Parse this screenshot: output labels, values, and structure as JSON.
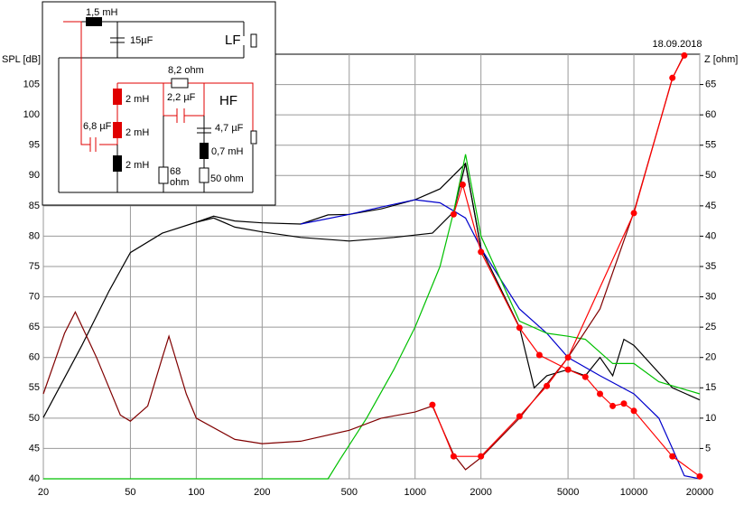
{
  "chart_data": {
    "type": "line",
    "title": "18.09.2018",
    "y_label": "SPL [dB]",
    "y2_label": "Z [ohm]",
    "xlim": [
      20,
      20000
    ],
    "xticks": [
      20,
      50,
      100,
      200,
      500,
      1000,
      2000,
      5000,
      10000,
      20000
    ],
    "log_x": true,
    "ylim": [
      40,
      110
    ],
    "yticks": [
      40,
      45,
      50,
      55,
      60,
      65,
      70,
      75,
      80,
      85,
      90,
      95,
      100,
      105
    ],
    "y2lim": [
      0,
      70
    ],
    "y2ticks": [
      5,
      10,
      15,
      20,
      25,
      30,
      35,
      40,
      45,
      50,
      55,
      60,
      65
    ],
    "grid": true,
    "series": [
      {
        "color": "#000000",
        "x": [
          20,
          30,
          40,
          50,
          70,
          100,
          120,
          150,
          200,
          300,
          400,
          500,
          700,
          1000,
          1300,
          1700,
          2000,
          3000,
          3500,
          4000,
          5000,
          6000,
          7000,
          8000,
          9000,
          10000,
          15000,
          20000
        ],
        "values": [
          50.1,
          62,
          71,
          77.3,
          80.5,
          82.3,
          83.3,
          82.5,
          82.2,
          82,
          83.5,
          83.6,
          84.5,
          86,
          87.8,
          92,
          78,
          65,
          55,
          57,
          58,
          57,
          60,
          57,
          63,
          62,
          55,
          53
        ]
      },
      {
        "color": "#000000",
        "x": [
          100,
          120,
          150,
          200,
          300,
          500,
          800,
          1200,
          1500,
          1700,
          2000
        ],
        "values": [
          82.3,
          83,
          81.5,
          80.7,
          79.8,
          79.2,
          79.8,
          80.5,
          84,
          92,
          78
        ]
      },
      {
        "color": "#0000cc",
        "x": [
          300,
          500,
          700,
          1000,
          1300,
          1700,
          2000,
          3000,
          4000,
          5000,
          7000,
          10000,
          13000,
          15000,
          17000,
          20000
        ],
        "values": [
          82,
          83.6,
          84.8,
          86,
          85.5,
          83,
          78,
          68,
          64,
          60,
          57,
          54,
          50,
          45,
          40.5,
          40
        ]
      },
      {
        "color": "#00c000",
        "x": [
          20,
          400,
          450,
          600,
          800,
          1000,
          1300,
          1500,
          1700,
          2000,
          3000,
          4000,
          5000,
          6000,
          8000,
          10000,
          13000,
          20000
        ],
        "values": [
          40,
          40,
          43,
          50,
          58,
          65,
          75,
          84,
          93.5,
          80,
          66,
          64,
          63.5,
          63,
          59,
          59,
          56,
          54
        ]
      },
      {
        "color": "#800000",
        "axis": "y2",
        "x": [
          20,
          25,
          28,
          35,
          45,
          50,
          60,
          70,
          75,
          90,
          100,
          150,
          200,
          300,
          500,
          700,
          1000,
          1200,
          1500,
          1700,
          2000,
          3000,
          5000,
          7000,
          10000,
          15000,
          17000
        ],
        "values": [
          14,
          24,
          27.5,
          20,
          10.5,
          9.5,
          12,
          20,
          23.5,
          14,
          10,
          6.5,
          5.8,
          6.2,
          8,
          10,
          11,
          12,
          4,
          1.5,
          3.5,
          10,
          20,
          28,
          44,
          66,
          70
        ]
      },
      {
        "color": "#ff0000",
        "marker": true,
        "x": [
          1500,
          1650,
          2000,
          3000,
          3700,
          5000,
          6000,
          7000,
          8000,
          9000,
          10000,
          15000,
          20000
        ],
        "values": [
          83.6,
          88.5,
          77.4,
          64.9,
          60.4,
          58,
          56.8,
          54,
          52,
          52.4,
          51.2,
          43.7,
          40.4
        ]
      },
      {
        "color": "#ff0000",
        "marker": true,
        "axis": "y2",
        "x": [
          1200,
          1500,
          2000,
          3000,
          4000,
          5000,
          10000,
          15000,
          17000
        ],
        "values": [
          12.2,
          3.7,
          3.7,
          10.3,
          15.3,
          20,
          43.8,
          66.1,
          69.8
        ]
      }
    ]
  },
  "schematic": {
    "l1": "1,5 mH",
    "c1": "15µF",
    "lf": "LF",
    "r1": "8,2 ohm",
    "l2": "2 mH",
    "c2": "2,2 µF",
    "hf": "HF",
    "c3": "6,8 µF",
    "l3": "2 mH",
    "c4": "4,7 µF",
    "l4": "0,7 mH",
    "l5": "2 mH",
    "r2": "68",
    "r2u": "ohm",
    "r3": "50 ohm"
  }
}
